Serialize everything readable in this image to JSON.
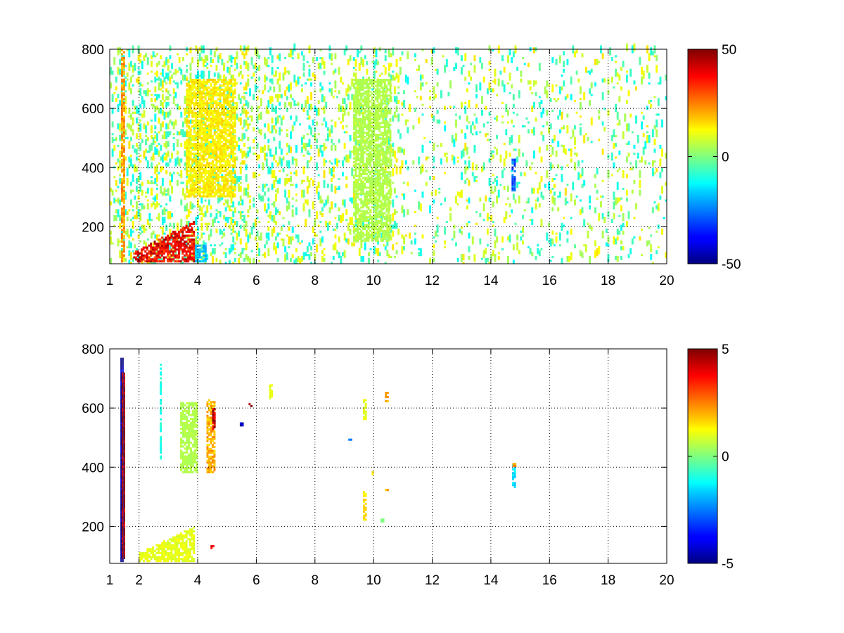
{
  "chart_data": [
    {
      "type": "heatmap",
      "title": "",
      "xlabel": "",
      "ylabel": "",
      "xlim": [
        1,
        20
      ],
      "ylim": [
        75,
        800
      ],
      "x_ticks": [
        1,
        2,
        4,
        6,
        8,
        10,
        12,
        14,
        16,
        18,
        20
      ],
      "x_grid": [
        2,
        4,
        6,
        8,
        10,
        12,
        14,
        16,
        18,
        20
      ],
      "y_ticks": [
        200,
        400,
        600,
        800
      ],
      "grid": true,
      "colormap": "jet",
      "colorbar": {
        "min": -50,
        "max": 50,
        "ticks": [
          -50,
          0,
          50
        ]
      },
      "legend": "none",
      "blank_threshold": 6,
      "point_density": 0.35,
      "features": [
        {
          "x": 1.45,
          "x_range": [
            1.38,
            1.52
          ],
          "y_range": [
            80,
            800
          ],
          "value": 22
        },
        {
          "x_range": [
            1.8,
            3.9
          ],
          "y_range": [
            80,
            220
          ],
          "value": 38,
          "shape": "rising-streak"
        },
        {
          "x_range": [
            3.6,
            5.3
          ],
          "y_range": [
            300,
            700
          ],
          "value": 14
        },
        {
          "x_range": [
            3.9,
            4.3
          ],
          "y_range": [
            80,
            140
          ],
          "value": -18
        },
        {
          "x_range": [
            14.7,
            14.85
          ],
          "y_range": [
            320,
            430
          ],
          "value": -28
        },
        {
          "x_range": [
            9.3,
            10.6
          ],
          "y_range": [
            150,
            700
          ],
          "value": 5
        }
      ]
    },
    {
      "type": "heatmap",
      "title": "",
      "xlabel": "",
      "ylabel": "",
      "xlim": [
        1,
        20
      ],
      "ylim": [
        75,
        800
      ],
      "x_ticks": [
        1,
        2,
        4,
        6,
        8,
        10,
        12,
        14,
        16,
        18,
        20
      ],
      "x_grid": [
        2,
        4,
        6,
        8,
        10,
        12,
        14,
        16,
        18,
        20
      ],
      "y_ticks": [
        200,
        400,
        600,
        800
      ],
      "grid": true,
      "colormap": "jet",
      "colorbar": {
        "min": -5,
        "max": 5,
        "ticks": [
          -5,
          0,
          5
        ]
      },
      "legend": "none",
      "point_density": 0.0,
      "features": [
        {
          "x": 1.42,
          "y_range": [
            80,
            770
          ],
          "value": -5,
          "shape": "thin-line"
        },
        {
          "x": 1.47,
          "y_range": [
            90,
            720
          ],
          "value": 5,
          "shape": "thin-line"
        },
        {
          "x_range": [
            2.0,
            3.9
          ],
          "y_range": [
            80,
            200
          ],
          "value": 1,
          "shape": "rising-streak"
        },
        {
          "x_range": [
            2.7,
            2.78
          ],
          "y_range": [
            420,
            750
          ],
          "value": -1
        },
        {
          "x_range": [
            3.4,
            4.0
          ],
          "y_range": [
            380,
            620
          ],
          "value": 0.5
        },
        {
          "x_range": [
            4.3,
            4.6
          ],
          "y_range": [
            380,
            630
          ],
          "value": 2
        },
        {
          "x_range": [
            4.5,
            4.6
          ],
          "y_range": [
            520,
            600
          ],
          "value": 4.5
        },
        {
          "x": 4.5,
          "y": 130,
          "value": 4
        },
        {
          "x": 5.8,
          "y": 610,
          "value": 5
        },
        {
          "x": 5.5,
          "y": 545,
          "value": -4
        },
        {
          "x": 6.5,
          "y_range": [
            630,
            680
          ],
          "value": 1
        },
        {
          "x": 9.7,
          "y_range": [
            220,
            320
          ],
          "value": 1.5
        },
        {
          "x": 9.7,
          "y_range": [
            560,
            630
          ],
          "value": 1
        },
        {
          "x": 10.0,
          "y": 380,
          "value": 1.5
        },
        {
          "x": 10.45,
          "y_range": [
            620,
            655
          ],
          "value": 2
        },
        {
          "x": 10.45,
          "y": 320,
          "value": 2
        },
        {
          "x": 9.2,
          "y": 490,
          "value": -3
        },
        {
          "x": 10.3,
          "y": 220,
          "value": 0
        },
        {
          "x_range": [
            14.72,
            14.85
          ],
          "y_range": [
            330,
            410
          ],
          "value": -1.5
        },
        {
          "x": 14.8,
          "y": 408,
          "value": 2.5
        }
      ]
    }
  ]
}
